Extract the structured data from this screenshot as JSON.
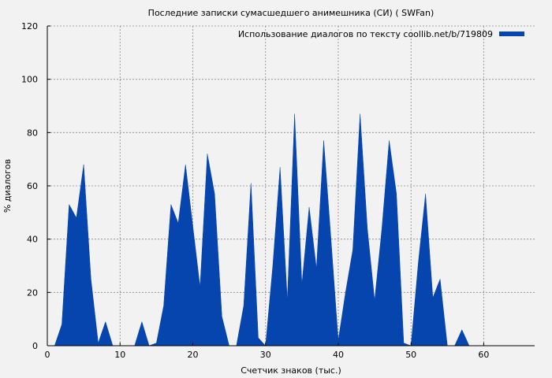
{
  "chart_data": {
    "type": "area",
    "title": "Последние записки сумасшедшего анимешника (СИ) ( SWFan)",
    "xlabel": "Счетчик знаков (тыс.)",
    "ylabel": "% диалогов",
    "xlim": [
      0,
      67
    ],
    "ylim": [
      0,
      120
    ],
    "xticks": [
      0,
      10,
      20,
      30,
      40,
      50,
      60
    ],
    "yticks": [
      0,
      20,
      40,
      60,
      80,
      100,
      120
    ],
    "grid": true,
    "legend_position": "top-right",
    "series": [
      {
        "name": "Использование диалогов по тексту coollib.net/b/719809",
        "color": "#0645ad",
        "x": [
          1,
          2,
          3,
          4,
          5,
          6,
          7,
          8,
          9,
          10,
          11,
          12,
          13,
          14,
          15,
          16,
          17,
          18,
          19,
          20,
          21,
          22,
          23,
          24,
          25,
          26,
          27,
          28,
          29,
          30,
          31,
          32,
          33,
          34,
          35,
          36,
          37,
          38,
          39,
          40,
          41,
          42,
          43,
          44,
          45,
          46,
          47,
          48,
          49,
          50,
          51,
          52,
          53,
          54,
          55,
          56,
          57,
          58
        ],
        "y": [
          0,
          8,
          53,
          48,
          68,
          25,
          1,
          9,
          0,
          0,
          0,
          0,
          9,
          0,
          1,
          15,
          53,
          46,
          68,
          45,
          22,
          72,
          57,
          11,
          0,
          0,
          15,
          61,
          3,
          0,
          30,
          67,
          17,
          87,
          23,
          52,
          29,
          77,
          40,
          2,
          20,
          36,
          87,
          44,
          17,
          44,
          77,
          57,
          1,
          0,
          31,
          57,
          18,
          25,
          0,
          0,
          6,
          0
        ]
      }
    ]
  }
}
